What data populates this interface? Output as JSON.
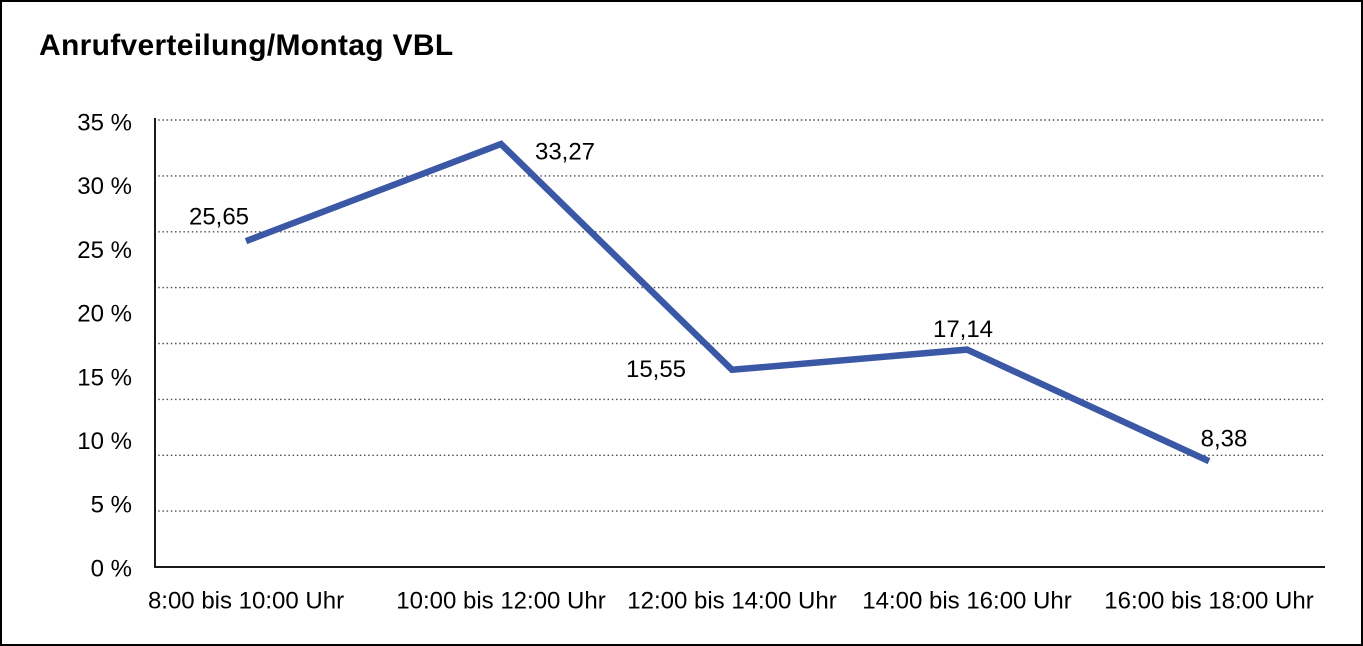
{
  "panel": {
    "background": "#ffffff",
    "border_color": "#000000"
  },
  "colors": {
    "line": "#3A58A5",
    "grid": "#4f4f4f",
    "axis": "#1a1a1a",
    "text": "#000000"
  },
  "chart_data": {
    "type": "line",
    "title": "Anrufverteilung/Montag VBL",
    "categories": [
      "8:00 bis 10:00 Uhr",
      "10:00 bis 12:00 Uhr",
      "12:00 bis 14:00 Uhr",
      "14:00 bis 16:00 Uhr",
      "16:00 bis 18:00 Uhr"
    ],
    "values": [
      25.65,
      33.27,
      15.55,
      17.14,
      8.38
    ],
    "value_labels": [
      "25,65",
      "33,27",
      "15,55",
      "17,14",
      "8,38"
    ],
    "y_tick_labels": [
      "35 %",
      "30 %",
      "25 %",
      "20 %",
      "15 %",
      "10 %",
      "5 %",
      "0 %"
    ],
    "y_tick_values": [
      35,
      30,
      25,
      20,
      15,
      10,
      5,
      0
    ],
    "ylim": [
      0,
      35
    ],
    "xlabel": "",
    "ylabel": "",
    "legend": "none",
    "grid": "horizontal-dotted",
    "gridline_count": 8
  }
}
